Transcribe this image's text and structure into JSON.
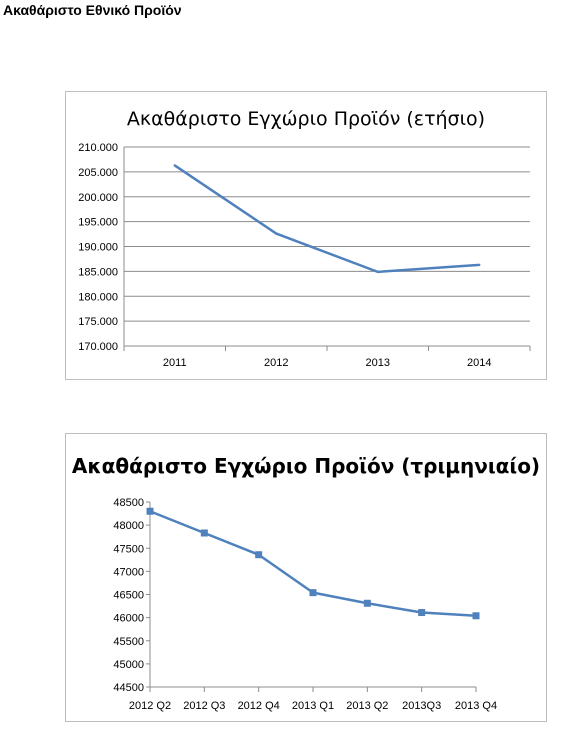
{
  "page_title": "Ακαθάριστο Εθνικό Προϊόν",
  "chart_data": [
    {
      "type": "line",
      "title": "Ακαθάριστο Εγχώριο Προϊόν (ετήσιο)",
      "categories": [
        "2011",
        "2012",
        "2013",
        "2014"
      ],
      "series": [
        {
          "values": [
            206300,
            192600,
            184900,
            186300
          ]
        }
      ],
      "ylim": [
        170000,
        210000
      ],
      "yticks": [
        "170.000",
        "175.000",
        "180.000",
        "185.000",
        "190.000",
        "195.000",
        "200.000",
        "205.000",
        "210.000"
      ],
      "ytick_values": [
        170000,
        175000,
        180000,
        185000,
        190000,
        195000,
        200000,
        205000,
        210000
      ],
      "grid": true,
      "markers": false,
      "color": "#4f81bd",
      "xlabel": "",
      "ylabel": ""
    },
    {
      "type": "line",
      "title": "Ακαθάριστο Εγχώριο Προϊόν (τριμηνιαίο)",
      "categories": [
        "2012 Q2",
        "2012 Q3",
        "2012 Q4",
        "2013 Q1",
        "2013 Q2",
        "2013Q3",
        "2013 Q4"
      ],
      "series": [
        {
          "values": [
            48300,
            47830,
            47360,
            46540,
            46310,
            46110,
            46040
          ]
        }
      ],
      "ylim": [
        44500,
        48500
      ],
      "yticks": [
        "44500",
        "45000",
        "45500",
        "46000",
        "46500",
        "47000",
        "47500",
        "48000",
        "48500"
      ],
      "ytick_values": [
        44500,
        45000,
        45500,
        46000,
        46500,
        47000,
        47500,
        48000,
        48500
      ],
      "grid": false,
      "markers": true,
      "color": "#4f81bd",
      "xlabel": "",
      "ylabel": ""
    }
  ]
}
